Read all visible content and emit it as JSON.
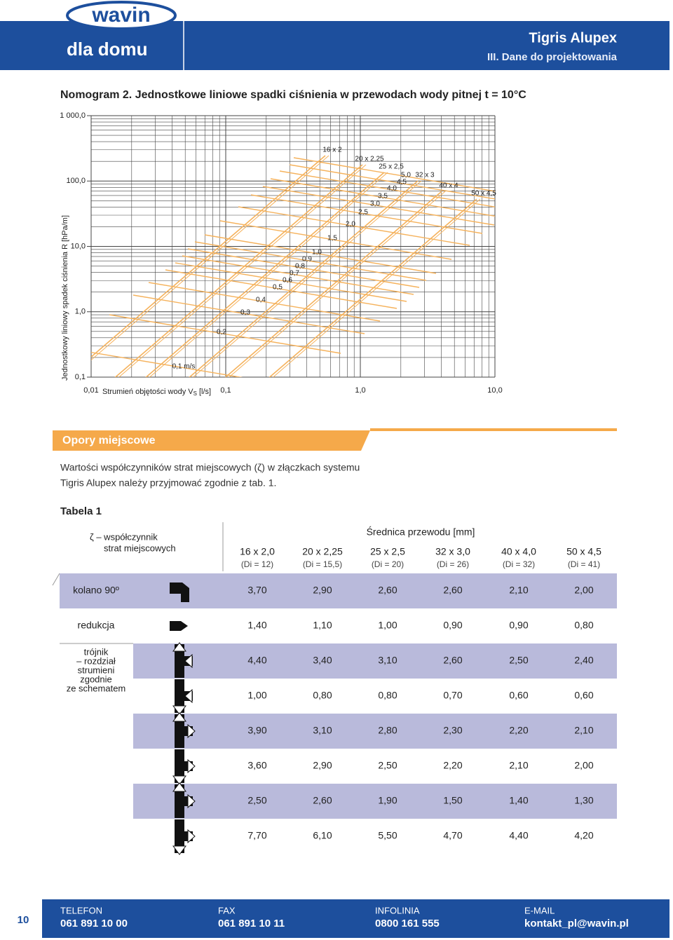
{
  "header": {
    "logo": "wavin",
    "tagline": "dla domu",
    "product": "Tigris Alupex",
    "section": "III. Dane do projektowania"
  },
  "title": "Nomogram 2. Jednostkowe liniowe spadki ciśnienia w przewodach wody pitnej t = 10°C",
  "nomogram": {
    "y_label": "Jednostkowy liniowy spadek ciśnienia R [hPa/m]",
    "y_ticks": [
      "1 000,0",
      "100,0",
      "10,0",
      "1,0",
      "0,1"
    ],
    "x_ticks": [
      "0,01",
      "0,1",
      "1,0",
      "10,0"
    ],
    "x_label": {
      "text": "Strumień objętości wody V",
      "subscript": "S",
      "unit": "[l/s]"
    },
    "velocity_labels": [
      "0,1 m/s",
      "0,2",
      "0,3",
      "0,4",
      "0,5",
      "0,6",
      "0,7",
      "0,8",
      "0,9",
      "1,0",
      "1,5",
      "2,0",
      "2,5",
      "3,0",
      "3,5",
      "4,0",
      "4,5",
      "5,0"
    ],
    "pipe_labels": [
      "16 x 2",
      "20 x 2,25",
      "25 x 2,5",
      "32 x 3",
      "40 x 4",
      "50 x 4,5"
    ]
  },
  "section_heading": "Opory miejscowe",
  "intro": [
    "Wartości współczynników strat miejscowych (ζ) w złączkach systemu",
    "Tigris Alupex należy przyjmować zgodnie z tab. 1."
  ],
  "table": {
    "caption": "Tabela 1",
    "corner": [
      "ζ – współczynnik",
      "strat miejscowych"
    ],
    "group_header": "Średnica przewodu [mm]",
    "columns": [
      {
        "size": "16 x 2,0",
        "di": "(Di = 12)"
      },
      {
        "size": "20 x 2,25",
        "di": "(Di = 15,5)"
      },
      {
        "size": "25 x 2,5",
        "di": "(Di = 20)"
      },
      {
        "size": "32 x 3,0",
        "di": "(Di = 26)"
      },
      {
        "size": "40 x 4,0",
        "di": "(Di = 32)"
      },
      {
        "size": "50 x 4,5",
        "di": "(Di = 41)"
      }
    ],
    "rows": [
      {
        "label": "kolano 90º",
        "values": [
          "3,70",
          "2,90",
          "2,60",
          "2,60",
          "2,10",
          "2,00"
        ]
      },
      {
        "label": "redukcja",
        "values": [
          "1,40",
          "1,10",
          "1,00",
          "0,90",
          "0,90",
          "0,80"
        ]
      },
      {
        "values": [
          "4,40",
          "3,40",
          "3,10",
          "2,60",
          "2,50",
          "2,40"
        ]
      },
      {
        "values": [
          "1,00",
          "0,80",
          "0,80",
          "0,70",
          "0,60",
          "0,60"
        ]
      },
      {
        "values": [
          "3,90",
          "3,10",
          "2,80",
          "2,30",
          "2,20",
          "2,10"
        ]
      },
      {
        "values": [
          "3,60",
          "2,90",
          "2,50",
          "2,20",
          "2,10",
          "2,00"
        ]
      },
      {
        "values": [
          "2,50",
          "2,60",
          "1,90",
          "1,50",
          "1,40",
          "1,30"
        ]
      },
      {
        "values": [
          "7,70",
          "6,10",
          "5,50",
          "4,70",
          "4,40",
          "4,20"
        ]
      }
    ],
    "tee_label": [
      "trójnik",
      "– rozdział",
      "strumieni",
      "zgodnie",
      "ze schematem"
    ]
  },
  "footer": {
    "page_number": "10",
    "contacts": [
      {
        "label": "TELEFON",
        "value": "061 891 10 00"
      },
      {
        "label": "FAX",
        "value": "061 891 10 11"
      },
      {
        "label": "INFOLINIA",
        "value": "0800 161 555"
      },
      {
        "label": "E-MAIL",
        "value": "kontakt_pl@wavin.pl"
      }
    ]
  }
}
